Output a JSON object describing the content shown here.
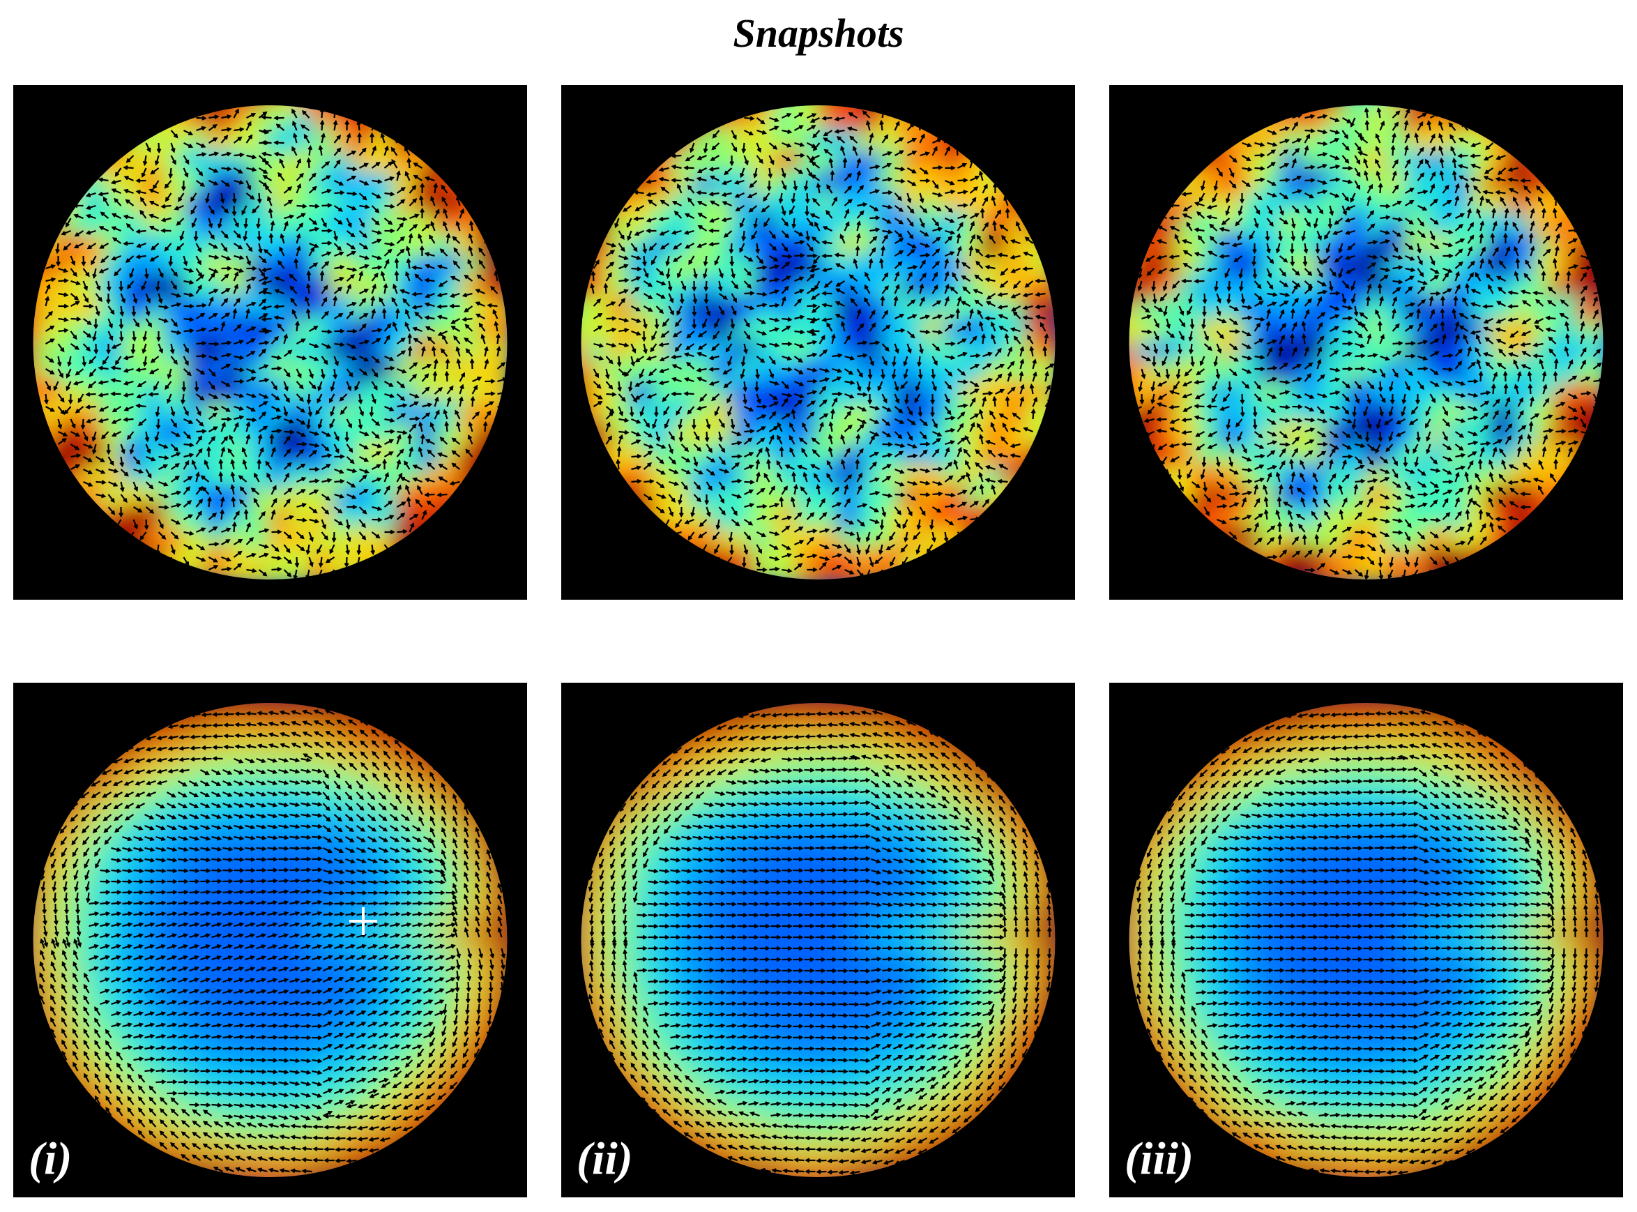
{
  "figure": {
    "title": "Snapshots"
  },
  "panels": [
    {
      "row": "instantaneous",
      "label": "",
      "seed": 11,
      "field": "turbulent",
      "marker": false
    },
    {
      "row": "instantaneous",
      "label": "",
      "seed": 23,
      "field": "turbulent",
      "marker": false
    },
    {
      "row": "instantaneous",
      "label": "",
      "seed": 37,
      "field": "turbulent",
      "marker": false
    },
    {
      "row": "averaged",
      "label": "(i)",
      "seed": 5,
      "field": "averaged-vortex",
      "marker": true
    },
    {
      "row": "averaged",
      "label": "(ii)",
      "seed": 7,
      "field": "averaged-dipole",
      "marker": false
    },
    {
      "row": "averaged",
      "label": "(iii)",
      "seed": 9,
      "field": "averaged-dipole",
      "marker": false
    }
  ],
  "colors": {
    "background": "#000000",
    "colormap": [
      "#00008f",
      "#0040ff",
      "#00c8ff",
      "#40ffbf",
      "#bfff40",
      "#ffd000",
      "#ff5000",
      "#a00000"
    ],
    "arrow": "#000000",
    "marker": "#ffffff",
    "label": "#ffffff"
  }
}
